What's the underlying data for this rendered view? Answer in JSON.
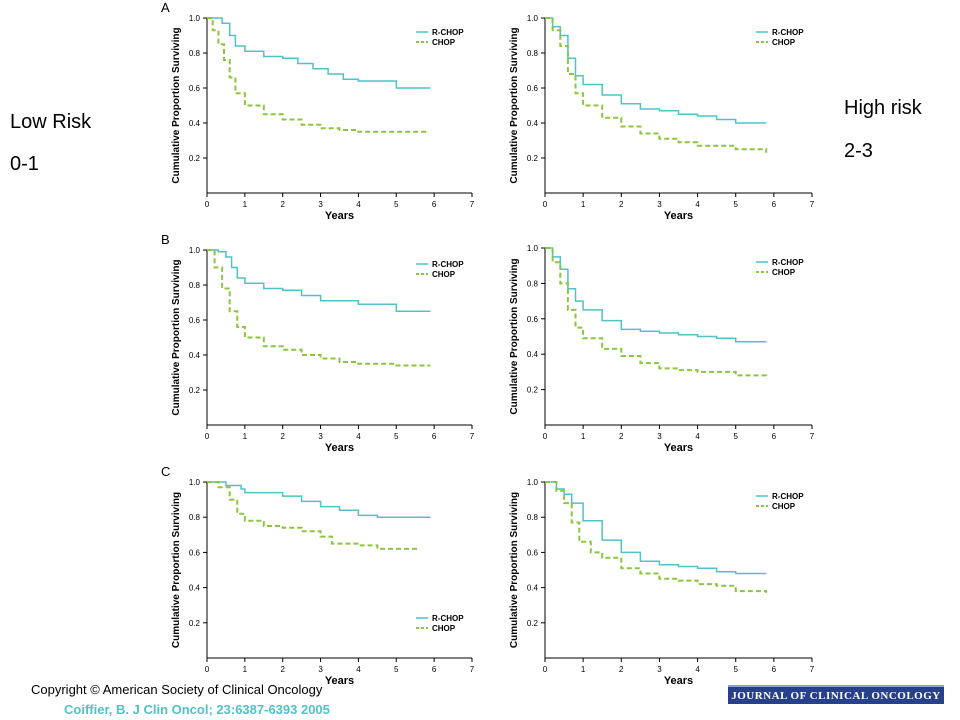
{
  "labels": {
    "left_title": "Low Risk",
    "left_sub": "0-1",
    "right_title": "High risk",
    "right_sub": "2-3"
  },
  "footer": {
    "copyright": "Copyright © American Society of Clinical Oncology",
    "citation": "Coiffier, B. J Clin Oncol; 23:6387-6393  2005",
    "journal": "JOURNAL OF CLINICAL ONCOLOGY"
  },
  "colors": {
    "rchop": "#4fc3c8",
    "chop": "#8cc63f"
  },
  "chart_data": [
    {
      "type": "line",
      "panel": "A",
      "column": "low-risk",
      "legend_position": "top-right",
      "xlabel": "Years",
      "ylabel": "Cumulative Proportion Surviving",
      "xlim": [
        0,
        7
      ],
      "ylim": [
        0,
        1.0
      ],
      "x_ticks": [
        0,
        1,
        2,
        3,
        4,
        5,
        6,
        7
      ],
      "y_ticks": [
        0.2,
        0.4,
        0.6,
        0.8,
        1.0
      ],
      "series": [
        {
          "name": "R-CHOP",
          "style": "solid",
          "points": [
            [
              0,
              1.0
            ],
            [
              0.4,
              0.97
            ],
            [
              0.6,
              0.9
            ],
            [
              0.75,
              0.84
            ],
            [
              1.0,
              0.81
            ],
            [
              1.5,
              0.78
            ],
            [
              2.0,
              0.77
            ],
            [
              2.4,
              0.74
            ],
            [
              2.8,
              0.71
            ],
            [
              3.2,
              0.68
            ],
            [
              3.6,
              0.65
            ],
            [
              4.0,
              0.64
            ],
            [
              5.0,
              0.6
            ],
            [
              5.9,
              0.6
            ]
          ]
        },
        {
          "name": "CHOP",
          "style": "dashed",
          "points": [
            [
              0,
              1.0
            ],
            [
              0.15,
              0.93
            ],
            [
              0.3,
              0.85
            ],
            [
              0.45,
              0.76
            ],
            [
              0.6,
              0.66
            ],
            [
              0.75,
              0.57
            ],
            [
              1.0,
              0.5
            ],
            [
              1.5,
              0.45
            ],
            [
              2.0,
              0.42
            ],
            [
              2.5,
              0.39
            ],
            [
              3.0,
              0.37
            ],
            [
              3.5,
              0.36
            ],
            [
              4.0,
              0.35
            ],
            [
              5.0,
              0.35
            ],
            [
              5.8,
              0.35
            ]
          ]
        }
      ]
    },
    {
      "type": "line",
      "panel": "",
      "column": "high-risk",
      "legend_position": "top-right",
      "xlabel": "Years",
      "ylabel": "Cumulative Proportion Surviving",
      "xlim": [
        0,
        7
      ],
      "ylim": [
        0,
        1.0
      ],
      "x_ticks": [
        0,
        1,
        2,
        3,
        4,
        5,
        6,
        7
      ],
      "y_ticks": [
        0.2,
        0.4,
        0.6,
        0.8,
        1.0
      ],
      "series": [
        {
          "name": "R-CHOP",
          "style": "solid",
          "points": [
            [
              0,
              1.0
            ],
            [
              0.2,
              0.95
            ],
            [
              0.4,
              0.9
            ],
            [
              0.6,
              0.77
            ],
            [
              0.8,
              0.67
            ],
            [
              1.0,
              0.62
            ],
            [
              1.5,
              0.56
            ],
            [
              2.0,
              0.51
            ],
            [
              2.5,
              0.48
            ],
            [
              3.0,
              0.47
            ],
            [
              3.5,
              0.45
            ],
            [
              4.0,
              0.44
            ],
            [
              4.5,
              0.42
            ],
            [
              5.0,
              0.4
            ],
            [
              5.8,
              0.4
            ]
          ]
        },
        {
          "name": "CHOP",
          "style": "dashed",
          "points": [
            [
              0,
              1.0
            ],
            [
              0.2,
              0.93
            ],
            [
              0.4,
              0.84
            ],
            [
              0.6,
              0.68
            ],
            [
              0.8,
              0.57
            ],
            [
              1.0,
              0.5
            ],
            [
              1.5,
              0.43
            ],
            [
              2.0,
              0.38
            ],
            [
              2.5,
              0.34
            ],
            [
              3.0,
              0.31
            ],
            [
              3.5,
              0.29
            ],
            [
              4.0,
              0.27
            ],
            [
              5.0,
              0.25
            ],
            [
              5.8,
              0.23
            ]
          ]
        }
      ]
    },
    {
      "type": "line",
      "panel": "B",
      "column": "low-risk",
      "legend_position": "top-right",
      "xlabel": "Years",
      "ylabel": "Cumulative Proportion Surviving",
      "xlim": [
        0,
        7
      ],
      "ylim": [
        0,
        1.0
      ],
      "x_ticks": [
        0,
        1,
        2,
        3,
        4,
        5,
        6,
        7
      ],
      "y_ticks": [
        0.2,
        0.4,
        0.6,
        0.8,
        1.0
      ],
      "series": [
        {
          "name": "R-CHOP",
          "style": "solid",
          "points": [
            [
              0,
              1.0
            ],
            [
              0.3,
              0.99
            ],
            [
              0.5,
              0.96
            ],
            [
              0.65,
              0.9
            ],
            [
              0.8,
              0.84
            ],
            [
              1.0,
              0.81
            ],
            [
              1.5,
              0.78
            ],
            [
              2.0,
              0.77
            ],
            [
              2.5,
              0.74
            ],
            [
              3.0,
              0.71
            ],
            [
              4.0,
              0.69
            ],
            [
              5.0,
              0.65
            ],
            [
              5.9,
              0.65
            ]
          ]
        },
        {
          "name": "CHOP",
          "style": "dashed",
          "points": [
            [
              0,
              1.0
            ],
            [
              0.2,
              0.9
            ],
            [
              0.4,
              0.78
            ],
            [
              0.6,
              0.65
            ],
            [
              0.8,
              0.56
            ],
            [
              1.0,
              0.5
            ],
            [
              1.5,
              0.45
            ],
            [
              2.0,
              0.43
            ],
            [
              2.5,
              0.4
            ],
            [
              3.0,
              0.38
            ],
            [
              3.5,
              0.36
            ],
            [
              4.0,
              0.35
            ],
            [
              5.0,
              0.34
            ],
            [
              5.9,
              0.34
            ]
          ]
        }
      ]
    },
    {
      "type": "line",
      "panel": "",
      "column": "high-risk",
      "legend_position": "top-right",
      "xlabel": "Years",
      "ylabel": "Cumulative Proportion Surviving",
      "xlim": [
        0,
        7
      ],
      "ylim": [
        0,
        1.0
      ],
      "x_ticks": [
        0,
        1,
        2,
        3,
        4,
        5,
        6,
        7
      ],
      "y_ticks": [
        0.2,
        0.4,
        0.6,
        0.8,
        1.0
      ],
      "series": [
        {
          "name": "R-CHOP",
          "style": "solid",
          "points": [
            [
              0,
              1.0
            ],
            [
              0.2,
              0.95
            ],
            [
              0.4,
              0.88
            ],
            [
              0.6,
              0.77
            ],
            [
              0.8,
              0.7
            ],
            [
              1.0,
              0.65
            ],
            [
              1.5,
              0.59
            ],
            [
              2.0,
              0.54
            ],
            [
              2.5,
              0.53
            ],
            [
              3.0,
              0.52
            ],
            [
              3.5,
              0.51
            ],
            [
              4.0,
              0.5
            ],
            [
              4.5,
              0.49
            ],
            [
              5.0,
              0.47
            ],
            [
              5.8,
              0.47
            ]
          ]
        },
        {
          "name": "CHOP",
          "style": "dashed",
          "points": [
            [
              0,
              1.0
            ],
            [
              0.2,
              0.92
            ],
            [
              0.4,
              0.8
            ],
            [
              0.6,
              0.65
            ],
            [
              0.8,
              0.55
            ],
            [
              1.0,
              0.49
            ],
            [
              1.5,
              0.43
            ],
            [
              2.0,
              0.39
            ],
            [
              2.5,
              0.35
            ],
            [
              3.0,
              0.32
            ],
            [
              3.5,
              0.31
            ],
            [
              4.0,
              0.3
            ],
            [
              5.0,
              0.28
            ],
            [
              5.8,
              0.26
            ]
          ]
        }
      ]
    },
    {
      "type": "line",
      "panel": "C",
      "column": "low-risk",
      "legend_position": "bottom-right",
      "xlabel": "Years",
      "ylabel": "Cumulative Proportion Surviving",
      "xlim": [
        0,
        7
      ],
      "ylim": [
        0,
        1.0
      ],
      "x_ticks": [
        0,
        1,
        2,
        3,
        4,
        5,
        6,
        7
      ],
      "y_ticks": [
        0.2,
        0.4,
        0.6,
        0.8,
        1.0
      ],
      "series": [
        {
          "name": "R-CHOP",
          "style": "solid",
          "points": [
            [
              0,
              1.0
            ],
            [
              0.5,
              0.98
            ],
            [
              0.9,
              0.96
            ],
            [
              1.0,
              0.94
            ],
            [
              1.5,
              0.94
            ],
            [
              2.0,
              0.92
            ],
            [
              2.5,
              0.89
            ],
            [
              3.0,
              0.86
            ],
            [
              3.5,
              0.84
            ],
            [
              4.0,
              0.81
            ],
            [
              4.5,
              0.8
            ],
            [
              5.0,
              0.8
            ],
            [
              5.9,
              0.8
            ]
          ]
        },
        {
          "name": "CHOP",
          "style": "dashed",
          "points": [
            [
              0,
              1.0
            ],
            [
              0.3,
              0.97
            ],
            [
              0.6,
              0.9
            ],
            [
              0.8,
              0.82
            ],
            [
              1.0,
              0.78
            ],
            [
              1.5,
              0.75
            ],
            [
              2.0,
              0.74
            ],
            [
              2.5,
              0.72
            ],
            [
              3.0,
              0.69
            ],
            [
              3.3,
              0.65
            ],
            [
              4.0,
              0.64
            ],
            [
              4.5,
              0.62
            ],
            [
              5.0,
              0.62
            ],
            [
              5.6,
              0.62
            ]
          ]
        }
      ]
    },
    {
      "type": "line",
      "panel": "",
      "column": "high-risk",
      "legend_position": "top-right",
      "xlabel": "Years",
      "ylabel": "Cumulative Proportion Surviving",
      "xlim": [
        0,
        7
      ],
      "ylim": [
        0,
        1.0
      ],
      "x_ticks": [
        0,
        1,
        2,
        3,
        4,
        5,
        6,
        7
      ],
      "y_ticks": [
        0.2,
        0.4,
        0.6,
        0.8,
        1.0
      ],
      "series": [
        {
          "name": "R-CHOP",
          "style": "solid",
          "points": [
            [
              0,
              1.0
            ],
            [
              0.3,
              0.96
            ],
            [
              0.5,
              0.93
            ],
            [
              0.7,
              0.88
            ],
            [
              1.0,
              0.78
            ],
            [
              1.5,
              0.67
            ],
            [
              2.0,
              0.6
            ],
            [
              2.5,
              0.55
            ],
            [
              3.0,
              0.53
            ],
            [
              3.5,
              0.52
            ],
            [
              4.0,
              0.51
            ],
            [
              4.5,
              0.49
            ],
            [
              5.0,
              0.48
            ],
            [
              5.8,
              0.48
            ]
          ]
        },
        {
          "name": "CHOP",
          "style": "dashed",
          "points": [
            [
              0,
              1.0
            ],
            [
              0.3,
              0.95
            ],
            [
              0.5,
              0.88
            ],
            [
              0.7,
              0.77
            ],
            [
              0.9,
              0.66
            ],
            [
              1.2,
              0.6
            ],
            [
              1.5,
              0.57
            ],
            [
              2.0,
              0.51
            ],
            [
              2.5,
              0.48
            ],
            [
              3.0,
              0.45
            ],
            [
              3.5,
              0.44
            ],
            [
              4.0,
              0.42
            ],
            [
              4.5,
              0.41
            ],
            [
              5.0,
              0.38
            ],
            [
              5.8,
              0.37
            ]
          ]
        }
      ]
    }
  ]
}
